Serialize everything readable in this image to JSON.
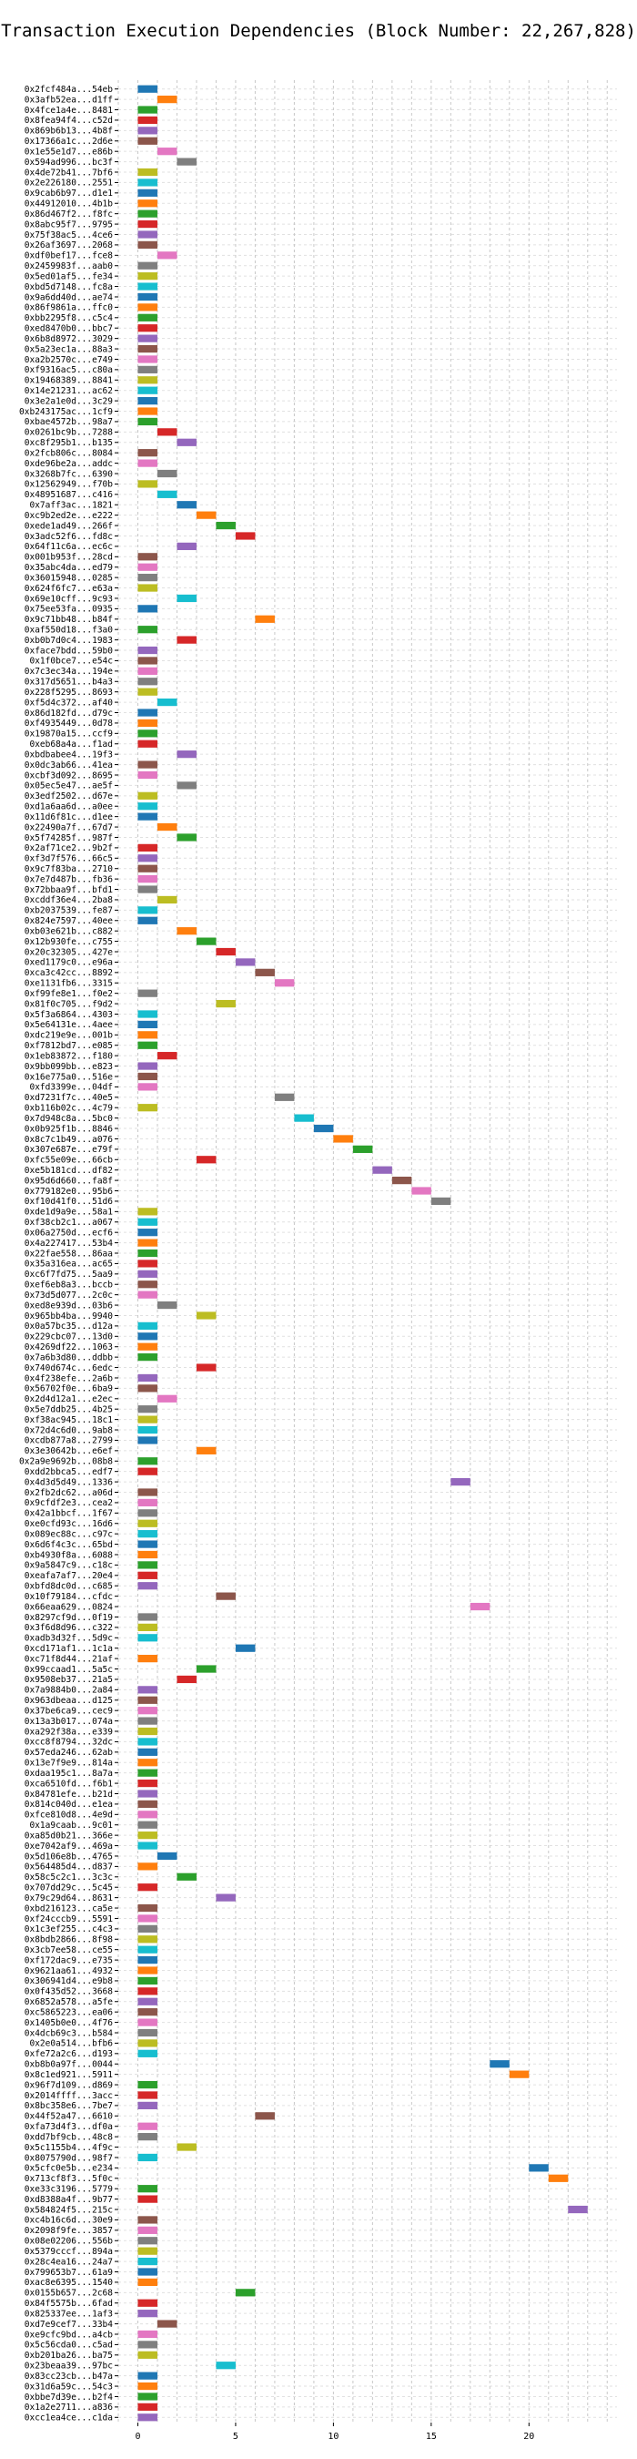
{
  "chart_data": {
    "type": "bar",
    "title": "Transaction Execution Dependencies (Block Number: 22,267,828)",
    "xlim": [
      -1,
      24.5
    ],
    "xticks": [
      0,
      5,
      10,
      15,
      20
    ],
    "grid": true,
    "bar_length": 1,
    "palette": [
      "#1f77b4",
      "#ff7f0e",
      "#2ca02c",
      "#d62728",
      "#9467bd",
      "#8c564b",
      "#e377c2",
      "#7f7f7f",
      "#bcbd22",
      "#17becf"
    ],
    "transactions": [
      {
        "hash": "0x2fcf484a...54eb",
        "start": 0
      },
      {
        "hash": "0x3afb52ea...d1ff",
        "start": 1
      },
      {
        "hash": "0x4fce1a4e...8481",
        "start": 0
      },
      {
        "hash": "0x8fea94f4...c52d",
        "start": 0
      },
      {
        "hash": "0x869b6b13...4b8f",
        "start": 0
      },
      {
        "hash": "0x17366a1c...2d6e",
        "start": 0
      },
      {
        "hash": "0x1e55e1d7...e86b",
        "start": 1
      },
      {
        "hash": "0x594ad996...bc3f",
        "start": 2
      },
      {
        "hash": "0x4de72b41...7bf6",
        "start": 0
      },
      {
        "hash": "0x2e226180...2551",
        "start": 0
      },
      {
        "hash": "0x9cab6b97...d1e1",
        "start": 0
      },
      {
        "hash": "0x44912010...4b1b",
        "start": 0
      },
      {
        "hash": "0x86d467f2...f8fc",
        "start": 0
      },
      {
        "hash": "0x8abc95f7...9795",
        "start": 0
      },
      {
        "hash": "0x75f38ac5...4ce6",
        "start": 0
      },
      {
        "hash": "0x26af3697...2068",
        "start": 0
      },
      {
        "hash": "0xdf0bef17...fce8",
        "start": 1
      },
      {
        "hash": "0x2459983f...aab0",
        "start": 0
      },
      {
        "hash": "0x5ed01af5...fe34",
        "start": 0
      },
      {
        "hash": "0xbd5d7148...fc8a",
        "start": 0
      },
      {
        "hash": "0x9a6dd40d...ae74",
        "start": 0
      },
      {
        "hash": "0x86f9861a...ffc0",
        "start": 0
      },
      {
        "hash": "0xbb2295f8...c5c4",
        "start": 0
      },
      {
        "hash": "0xed8470b0...bbc7",
        "start": 0
      },
      {
        "hash": "0x6b8d8972...3029",
        "start": 0
      },
      {
        "hash": "0x5a23ec1a...88a3",
        "start": 0
      },
      {
        "hash": "0xa2b2570c...e749",
        "start": 0
      },
      {
        "hash": "0xf9316ac5...c80a",
        "start": 0
      },
      {
        "hash": "0x19468389...8841",
        "start": 0
      },
      {
        "hash": "0x14e21231...ac62",
        "start": 0
      },
      {
        "hash": "0x3e2a1e0d...3c29",
        "start": 0
      },
      {
        "hash": "0xb243175ac...1cf9",
        "start": 0
      },
      {
        "hash": "0xbae4572b...98a7",
        "start": 0
      },
      {
        "hash": "0x0261bc9b...7288",
        "start": 1
      },
      {
        "hash": "0xc8f295b1...b135",
        "start": 2
      },
      {
        "hash": "0x2fcb806c...8084",
        "start": 0
      },
      {
        "hash": "0xde96be2a...addc",
        "start": 0
      },
      {
        "hash": "0x3268b7fc...6390",
        "start": 1
      },
      {
        "hash": "0x12562949...f70b",
        "start": 0
      },
      {
        "hash": "0x48951687...c416",
        "start": 1
      },
      {
        "hash": "0x7aff3ac...1821",
        "start": 2
      },
      {
        "hash": "0xc9b2ed2e...e222",
        "start": 3
      },
      {
        "hash": "0xede1ad49...266f",
        "start": 4
      },
      {
        "hash": "0x3adc52f6...fd8c",
        "start": 5
      },
      {
        "hash": "0x64f11c6a...ec6c",
        "start": 2
      },
      {
        "hash": "0x001b953f...28cd",
        "start": 0
      },
      {
        "hash": "0x35abc4da...ed79",
        "start": 0
      },
      {
        "hash": "0x36015948...0285",
        "start": 0
      },
      {
        "hash": "0x624f6fc7...e63a",
        "start": 0
      },
      {
        "hash": "0x69e10cff...9c93",
        "start": 2
      },
      {
        "hash": "0x75ee53fa...0935",
        "start": 0
      },
      {
        "hash": "0x9c71bb48...b84f",
        "start": 6
      },
      {
        "hash": "0xaf550d18...f3a0",
        "start": 0
      },
      {
        "hash": "0xb0b7d0c4...1983",
        "start": 2
      },
      {
        "hash": "0xface7bdd...59b0",
        "start": 0
      },
      {
        "hash": "0x1f0bce7...e54c",
        "start": 0
      },
      {
        "hash": "0x7c3ec34a...194e",
        "start": 0
      },
      {
        "hash": "0x317d5651...b4a3",
        "start": 0
      },
      {
        "hash": "0x228f5295...8693",
        "start": 0
      },
      {
        "hash": "0xf5d4c372...af40",
        "start": 1
      },
      {
        "hash": "0x86d182fd...d79c",
        "start": 0
      },
      {
        "hash": "0xf4935449...0d78",
        "start": 0
      },
      {
        "hash": "0x19870a15...ccf9",
        "start": 0
      },
      {
        "hash": "0xeb68a4a...f1ad",
        "start": 0
      },
      {
        "hash": "0xbdbabee4...19f3",
        "start": 2
      },
      {
        "hash": "0x0dc3ab66...41ea",
        "start": 0
      },
      {
        "hash": "0xcbf3d092...8695",
        "start": 0
      },
      {
        "hash": "0x05ec5e47...ae5f",
        "start": 2
      },
      {
        "hash": "0x3edf2502...d67e",
        "start": 0
      },
      {
        "hash": "0xd1a6aa6d...a0ee",
        "start": 0
      },
      {
        "hash": "0x11d6f81c...d1ee",
        "start": 0
      },
      {
        "hash": "0x22490a7f...67d7",
        "start": 1
      },
      {
        "hash": "0x5f74285f...987f",
        "start": 2
      },
      {
        "hash": "0x2af71ce2...9b2f",
        "start": 0
      },
      {
        "hash": "0xf3d7f576...66c5",
        "start": 0
      },
      {
        "hash": "0x9c7f83ba...2710",
        "start": 0
      },
      {
        "hash": "0x7e7d487b...fb36",
        "start": 0
      },
      {
        "hash": "0x72bbaa9f...bfd1",
        "start": 0
      },
      {
        "hash": "0xcddf36e4...2ba8",
        "start": 1
      },
      {
        "hash": "0xb2037539...fe87",
        "start": 0
      },
      {
        "hash": "0x824e7597...40ee",
        "start": 0
      },
      {
        "hash": "0xb03e621b...c882",
        "start": 2
      },
      {
        "hash": "0x12b930fe...c755",
        "start": 3
      },
      {
        "hash": "0x20c32305...427e",
        "start": 4
      },
      {
        "hash": "0xed1179c0...e96a",
        "start": 5
      },
      {
        "hash": "0xca3c42cc...8892",
        "start": 6
      },
      {
        "hash": "0xe1131fb6...3315",
        "start": 7
      },
      {
        "hash": "0xf99fe8e1...f0e2",
        "start": 0
      },
      {
        "hash": "0x81f0c705...f9d2",
        "start": 4
      },
      {
        "hash": "0x5f3a6864...4303",
        "start": 0
      },
      {
        "hash": "0x5e64131e...4aee",
        "start": 0
      },
      {
        "hash": "0xdc219e9e...001b",
        "start": 0
      },
      {
        "hash": "0xf7812bd7...e085",
        "start": 0
      },
      {
        "hash": "0x1eb83872...f180",
        "start": 1
      },
      {
        "hash": "0x9bb099bb...e823",
        "start": 0
      },
      {
        "hash": "0x16e775a0...516e",
        "start": 0
      },
      {
        "hash": "0xfd3399e...04df",
        "start": 0
      },
      {
        "hash": "0xd7231f7c...40e5",
        "start": 7
      },
      {
        "hash": "0xb116b02c...4c79",
        "start": 0
      },
      {
        "hash": "0x7d948c8a...5bc0",
        "start": 8
      },
      {
        "hash": "0x0b925f1b...8846",
        "start": 9
      },
      {
        "hash": "0x8c7c1b49...a076",
        "start": 10
      },
      {
        "hash": "0x307e687e...e79f",
        "start": 11
      },
      {
        "hash": "0xfc55e09e...66cb",
        "start": 3
      },
      {
        "hash": "0xe5b181cd...df82",
        "start": 12
      },
      {
        "hash": "0x95d6d660...fa8f",
        "start": 13
      },
      {
        "hash": "0x779182e0...95b6",
        "start": 14
      },
      {
        "hash": "0xf10d41f0...51d6",
        "start": 15
      },
      {
        "hash": "0xde1d9a9e...58a1",
        "start": 0
      },
      {
        "hash": "0xf38cb2c1...a067",
        "start": 0
      },
      {
        "hash": "0x06a2750d...ecf6",
        "start": 0
      },
      {
        "hash": "0x4a227417...53b4",
        "start": 0
      },
      {
        "hash": "0x22fae558...86aa",
        "start": 0
      },
      {
        "hash": "0x35a316ea...ac65",
        "start": 0
      },
      {
        "hash": "0xc6f7fd75...5aa9",
        "start": 0
      },
      {
        "hash": "0xef6eb8a3...bccb",
        "start": 0
      },
      {
        "hash": "0x73d5d077...2c0c",
        "start": 0
      },
      {
        "hash": "0xed8e939d...03b6",
        "start": 1
      },
      {
        "hash": "0x965bb4ba...9940",
        "start": 3
      },
      {
        "hash": "0x0a57bc35...d12a",
        "start": 0
      },
      {
        "hash": "0x229cbc07...13d0",
        "start": 0
      },
      {
        "hash": "0x4269df22...1063",
        "start": 0
      },
      {
        "hash": "0x7a6b3d80...ddbb",
        "start": 0
      },
      {
        "hash": "0x740d674c...6edc",
        "start": 3
      },
      {
        "hash": "0x4f238efe...2a6b",
        "start": 0
      },
      {
        "hash": "0x56702f0e...6ba9",
        "start": 0
      },
      {
        "hash": "0x2d4d12a1...e2ec",
        "start": 1
      },
      {
        "hash": "0x5e7ddb25...4b25",
        "start": 0
      },
      {
        "hash": "0xf38ac945...18c1",
        "start": 0
      },
      {
        "hash": "0x72d4c6d0...9ab8",
        "start": 0
      },
      {
        "hash": "0xcdb877a8...2799",
        "start": 0
      },
      {
        "hash": "0x3e30642b...e6ef",
        "start": 3
      },
      {
        "hash": "0x2a9e9692b...08b8",
        "start": 0
      },
      {
        "hash": "0xdd2bbca5...edf7",
        "start": 0
      },
      {
        "hash": "0x4d3d5d49...1336",
        "start": 16
      },
      {
        "hash": "0x2fb2dc62...a06d",
        "start": 0
      },
      {
        "hash": "0x9cfdf2e3...cea2",
        "start": 0
      },
      {
        "hash": "0x42a1bbcf...1f67",
        "start": 0
      },
      {
        "hash": "0xe0cfd93c...16d6",
        "start": 0
      },
      {
        "hash": "0x089ec88c...c97c",
        "start": 0
      },
      {
        "hash": "0x6d6f4c3c...65bd",
        "start": 0
      },
      {
        "hash": "0xb4930f8a...6088",
        "start": 0
      },
      {
        "hash": "0x9a5847c9...c18c",
        "start": 0
      },
      {
        "hash": "0xeafa7af7...20e4",
        "start": 0
      },
      {
        "hash": "0xbfd8dc0d...c685",
        "start": 0
      },
      {
        "hash": "0x10f79184...cfdc",
        "start": 4
      },
      {
        "hash": "0x66eaa629...0824",
        "start": 17
      },
      {
        "hash": "0x8297cf9d...0f19",
        "start": 0
      },
      {
        "hash": "0x3f6d8d96...c322",
        "start": 0
      },
      {
        "hash": "0xadb3d32f...5d9c",
        "start": 0
      },
      {
        "hash": "0xcd171af1...1c1a",
        "start": 5
      },
      {
        "hash": "0xc71f8d44...21af",
        "start": 0
      },
      {
        "hash": "0x99ccaad1...5a5c",
        "start": 3
      },
      {
        "hash": "0x9508eb37...21a5",
        "start": 2
      },
      {
        "hash": "0x7a9884b0...2a84",
        "start": 0
      },
      {
        "hash": "0x963dbeaa...d125",
        "start": 0
      },
      {
        "hash": "0x37be6ca9...cec9",
        "start": 0
      },
      {
        "hash": "0x13a3b017...074a",
        "start": 0
      },
      {
        "hash": "0xa292f38a...e339",
        "start": 0
      },
      {
        "hash": "0xcc8f8794...32dc",
        "start": 0
      },
      {
        "hash": "0x57eda246...62ab",
        "start": 0
      },
      {
        "hash": "0x13e7f9e9...814a",
        "start": 0
      },
      {
        "hash": "0xdaa195c1...8a7a",
        "start": 0
      },
      {
        "hash": "0xca6510fd...f6b1",
        "start": 0
      },
      {
        "hash": "0x84781efe...b21d",
        "start": 0
      },
      {
        "hash": "0x814c040d...e1ea",
        "start": 0
      },
      {
        "hash": "0xfce810d8...4e9d",
        "start": 0
      },
      {
        "hash": "0x1a9caab...9c01",
        "start": 0
      },
      {
        "hash": "0xa85d0b21...366e",
        "start": 0
      },
      {
        "hash": "0xe7042af9...469a",
        "start": 0
      },
      {
        "hash": "0x5d106e8b...4765",
        "start": 1
      },
      {
        "hash": "0x564485d4...d837",
        "start": 0
      },
      {
        "hash": "0x58c5c2c1...3c3c",
        "start": 2
      },
      {
        "hash": "0x707dd29c...5c45",
        "start": 0
      },
      {
        "hash": "0x79c29d64...8631",
        "start": 4
      },
      {
        "hash": "0xbd216123...ca5e",
        "start": 0
      },
      {
        "hash": "0xf24cccb9...5591",
        "start": 0
      },
      {
        "hash": "0x1c3ef255...c4c3",
        "start": 0
      },
      {
        "hash": "0x8bdb2866...8f98",
        "start": 0
      },
      {
        "hash": "0x3cb7ee58...ce55",
        "start": 0
      },
      {
        "hash": "0xf172dac9...e735",
        "start": 0
      },
      {
        "hash": "0x9621aa61...4932",
        "start": 0
      },
      {
        "hash": "0x306941d4...e9b8",
        "start": 0
      },
      {
        "hash": "0x0f435d52...3668",
        "start": 0
      },
      {
        "hash": "0x6852a578...a5fe",
        "start": 0
      },
      {
        "hash": "0xc5865223...ea06",
        "start": 0
      },
      {
        "hash": "0x1405b0e0...4f76",
        "start": 0
      },
      {
        "hash": "0x4dcb69c3...b584",
        "start": 0
      },
      {
        "hash": "0x2e0a514...bfb6",
        "start": 0
      },
      {
        "hash": "0xfe72a2c6...d193",
        "start": 0
      },
      {
        "hash": "0xb8b0a97f...0044",
        "start": 18
      },
      {
        "hash": "0x8c1ed921...5911",
        "start": 19
      },
      {
        "hash": "0x96f7d109...d869",
        "start": 0
      },
      {
        "hash": "0x2014ffff...3acc",
        "start": 0
      },
      {
        "hash": "0x8bc358e6...7be7",
        "start": 0
      },
      {
        "hash": "0x44f52a47...6610",
        "start": 6
      },
      {
        "hash": "0xfa73d4f3...df0a",
        "start": 0
      },
      {
        "hash": "0xdd7bf9cb...48c8",
        "start": 0
      },
      {
        "hash": "0x5c1155b4...4f9c",
        "start": 2
      },
      {
        "hash": "0x8075790d...98f7",
        "start": 0
      },
      {
        "hash": "0x5cfc0e5b...e234",
        "start": 20
      },
      {
        "hash": "0x713cf8f3...5f0c",
        "start": 21
      },
      {
        "hash": "0xe33c3196...5779",
        "start": 0
      },
      {
        "hash": "0xd8388a4f...9b77",
        "start": 0
      },
      {
        "hash": "0x584824f5...215c",
        "start": 22
      },
      {
        "hash": "0xc4b16c6d...30e9",
        "start": 0
      },
      {
        "hash": "0x2098f9fe...3857",
        "start": 0
      },
      {
        "hash": "0x08e02206...556b",
        "start": 0
      },
      {
        "hash": "0x5379cccf...894a",
        "start": 0
      },
      {
        "hash": "0x28c4ea16...24a7",
        "start": 0
      },
      {
        "hash": "0x799653b7...61a9",
        "start": 0
      },
      {
        "hash": "0xac8e6395...1540",
        "start": 0
      },
      {
        "hash": "0x0155b657...2c68",
        "start": 5
      },
      {
        "hash": "0x84f5575b...6fad",
        "start": 0
      },
      {
        "hash": "0x825337ee...1af3",
        "start": 0
      },
      {
        "hash": "0xd7e9cef7...33b4",
        "start": 1
      },
      {
        "hash": "0xe9cfc9bd...a4cb",
        "start": 0
      },
      {
        "hash": "0x5c56cda0...c5ad",
        "start": 0
      },
      {
        "hash": "0xb201ba26...ba75",
        "start": 0
      },
      {
        "hash": "0x23beaa39...97bc",
        "start": 4
      },
      {
        "hash": "0x83cc23cb...b47a",
        "start": 0
      },
      {
        "hash": "0x31d6a59c...54c3",
        "start": 0
      },
      {
        "hash": "0xbbe7d39e...b2f4",
        "start": 0
      },
      {
        "hash": "0x1a2e2711...a836",
        "start": 0
      },
      {
        "hash": "0xcc1ea4ce...c1da",
        "start": 0
      }
    ]
  }
}
